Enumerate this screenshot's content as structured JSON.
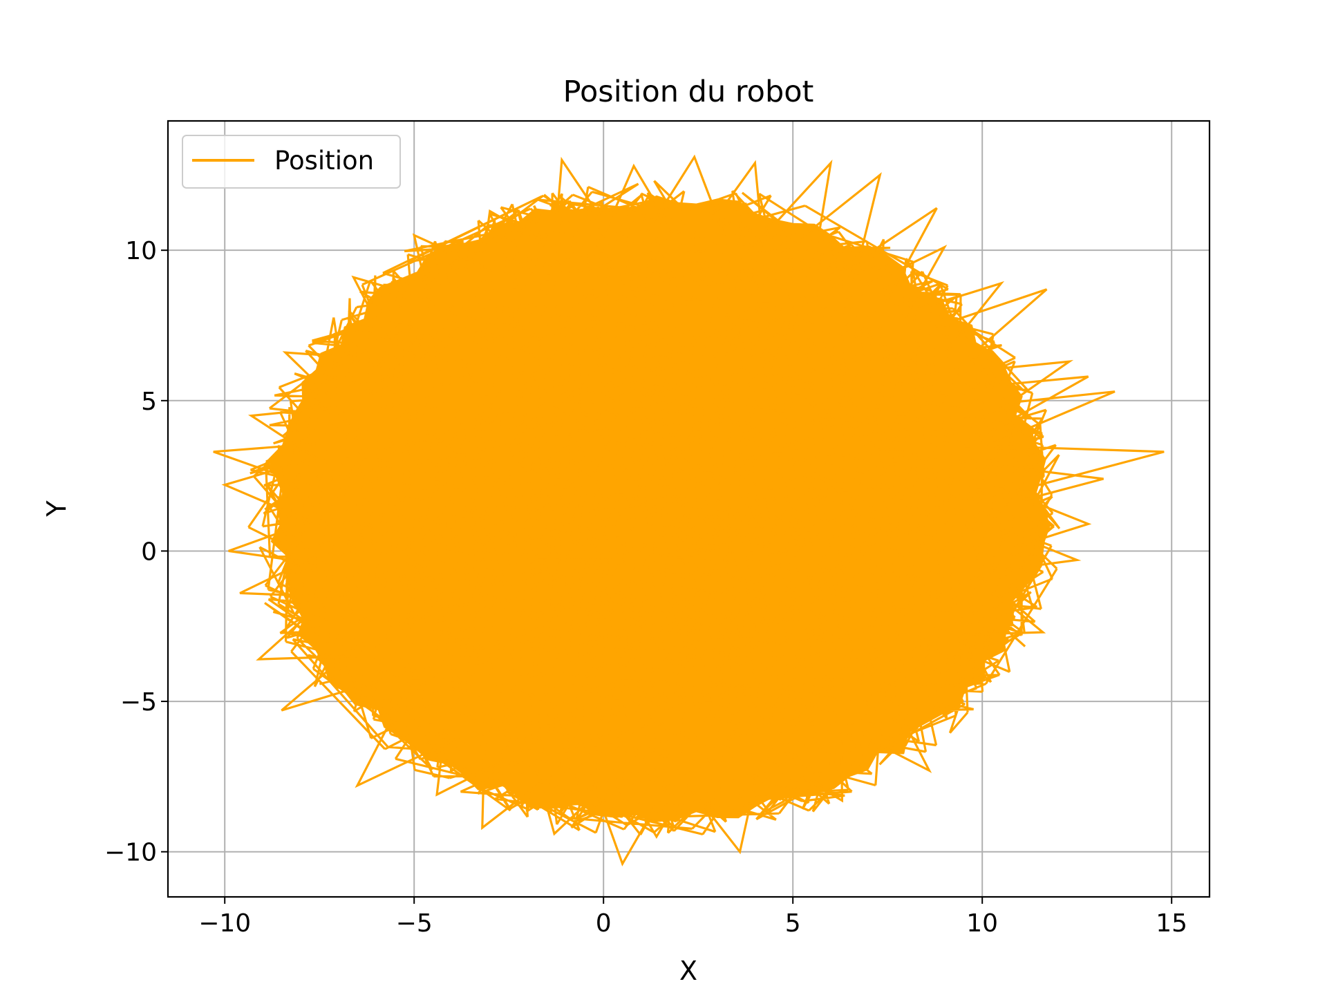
{
  "chart_data": {
    "type": "line",
    "title": "Position du robot",
    "xlabel": "X",
    "ylabel": "Y",
    "xlim": [
      -11.5,
      16
    ],
    "ylim": [
      -11.5,
      14.3
    ],
    "xticks": [
      -10,
      -5,
      0,
      5,
      10,
      15
    ],
    "yticks": [
      -10,
      -5,
      0,
      5,
      10
    ],
    "xtick_labels": [
      "−10",
      "−5",
      "0",
      "5",
      "10",
      "15"
    ],
    "ytick_labels": [
      "−10",
      "−5",
      "0",
      "5",
      "10"
    ],
    "grid": true,
    "legend": {
      "position": "upper-left",
      "entries": [
        "Position"
      ]
    },
    "series": [
      {
        "name": "Position",
        "color": "#ffa500",
        "fill_region": {
          "center": [
            1.4,
            1.4
          ],
          "radius_x": 10.6,
          "radius_y": 10.7
        },
        "outlier_points": [
          [
            -10.3,
            3.3
          ],
          [
            -10.0,
            2.2
          ],
          [
            -9.3,
            4.5
          ],
          [
            -8.4,
            6.6
          ],
          [
            -6.6,
            9.1
          ],
          [
            -5.0,
            10.5
          ],
          [
            -3.0,
            11.3
          ],
          [
            -1.1,
            13.0
          ],
          [
            0.8,
            12.8
          ],
          [
            2.4,
            13.1
          ],
          [
            4.0,
            12.9
          ],
          [
            6.0,
            12.9
          ],
          [
            7.3,
            12.5
          ],
          [
            8.8,
            11.4
          ],
          [
            9.0,
            10.1
          ],
          [
            10.5,
            8.9
          ],
          [
            11.7,
            8.7
          ],
          [
            12.3,
            6.3
          ],
          [
            12.8,
            5.8
          ],
          [
            13.5,
            5.3
          ],
          [
            14.8,
            3.3
          ],
          [
            13.2,
            2.4
          ],
          [
            12.8,
            0.9
          ],
          [
            12.5,
            -0.3
          ],
          [
            11.6,
            -2.7
          ],
          [
            10.0,
            -4.4
          ],
          [
            8.6,
            -7.3
          ],
          [
            6.3,
            -8.3
          ],
          [
            3.6,
            -10.0
          ],
          [
            1.4,
            -9.5
          ],
          [
            0.5,
            -10.4
          ],
          [
            -1.3,
            -9.4
          ],
          [
            -3.2,
            -9.2
          ],
          [
            -4.4,
            -8.1
          ],
          [
            -6.5,
            -7.8
          ],
          [
            -8.5,
            -5.3
          ],
          [
            -9.1,
            -3.6
          ],
          [
            -9.6,
            -1.4
          ],
          [
            -9.9,
            0.0
          ]
        ]
      }
    ]
  }
}
